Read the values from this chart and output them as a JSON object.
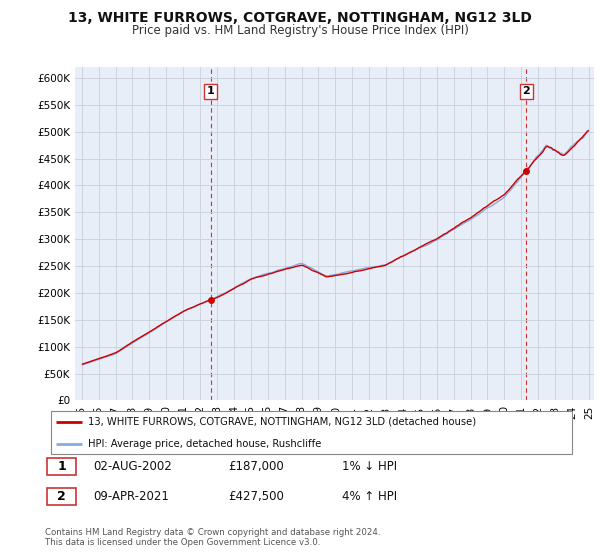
{
  "title": "13, WHITE FURROWS, COTGRAVE, NOTTINGHAM, NG12 3LD",
  "subtitle": "Price paid vs. HM Land Registry's House Price Index (HPI)",
  "legend_line1": "13, WHITE FURROWS, COTGRAVE, NOTTINGHAM, NG12 3LD (detached house)",
  "legend_line2": "HPI: Average price, detached house, Rushcliffe",
  "footnote": "Contains HM Land Registry data © Crown copyright and database right 2024.\nThis data is licensed under the Open Government Licence v3.0.",
  "point1_date": "02-AUG-2002",
  "point1_price": "£187,000",
  "point1_hpi": "1% ↓ HPI",
  "point2_date": "09-APR-2021",
  "point2_price": "£427,500",
  "point2_hpi": "4% ↑ HPI",
  "red_color": "#cc0000",
  "blue_color": "#88aadd",
  "dashed_red": "#cc3333",
  "ylim_min": 0,
  "ylim_max": 620000,
  "bg_color": "#ffffff",
  "plot_bg": "#e8eef8",
  "grid_color": "#c8d0dc"
}
